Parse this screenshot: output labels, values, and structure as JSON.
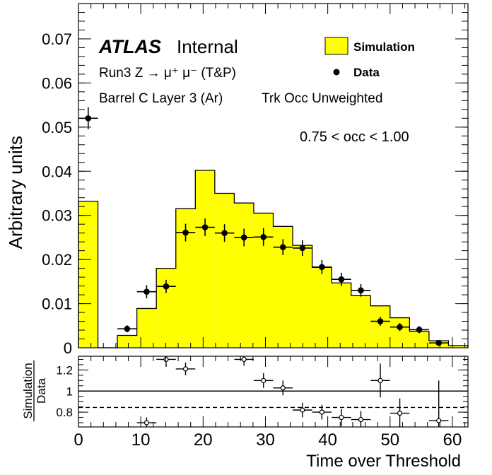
{
  "chart_data": {
    "type": "bar",
    "ylabel": "Arbitrary units",
    "xlabel": "Time over Threshold",
    "xlim": [
      0,
      62.5
    ],
    "ylim": [
      0,
      0.078
    ],
    "yticks": [
      "0",
      "0.01",
      "0.02",
      "0.03",
      "0.04",
      "0.05",
      "0.06",
      "0.07"
    ],
    "xticks": [
      "0",
      "10",
      "20",
      "30",
      "40",
      "50",
      "60"
    ],
    "annotations": {
      "atlas": "ATLAS",
      "internal": "Internal",
      "line1": "Run3 Z → μ⁺ μ⁻ (T&P)",
      "line2": "Barrel C Layer 3 (Ar)",
      "line3": "Trk Occ Unweighted",
      "occ": "0.75 < occ < 1.00"
    },
    "legend": {
      "position": "top-right",
      "simulation": "Simulation",
      "data": "Data",
      "sim_color": "#ffff00"
    },
    "bin_edges": [
      0,
      3.125,
      6.25,
      9.375,
      12.5,
      15.625,
      18.75,
      21.875,
      25,
      28.125,
      31.25,
      34.375,
      37.5,
      40.625,
      43.75,
      46.875,
      50,
      53.125,
      56.25,
      59.375,
      62.5
    ],
    "simulation": [
      0.0332,
      0,
      0.0028,
      0.0089,
      0.018,
      0.0315,
      0.0402,
      0.035,
      0.0328,
      0.0305,
      0.0275,
      0.0232,
      0.0182,
      0.0147,
      0.0118,
      0.0095,
      0.0068,
      0.0037,
      0.0016,
      0.0005
    ],
    "data": {
      "x": [
        1.5625,
        7.8125,
        10.9375,
        14.0625,
        17.1875,
        20.3125,
        23.4375,
        26.5625,
        29.6875,
        32.8125,
        35.9375,
        39.0625,
        42.1875,
        45.3125,
        48.4375,
        51.5625,
        54.6875,
        57.8125
      ],
      "y": [
        0.052,
        0.0043,
        0.0127,
        0.0139,
        0.0261,
        0.0273,
        0.026,
        0.025,
        0.0251,
        0.0228,
        0.0226,
        0.0183,
        0.0155,
        0.013,
        0.006,
        0.0047,
        0.0041,
        0.0011
      ],
      "err": [
        0.0025,
        0.0008,
        0.0015,
        0.0015,
        0.002,
        0.002,
        0.002,
        0.002,
        0.002,
        0.0018,
        0.0018,
        0.0016,
        0.0015,
        0.0014,
        0.001,
        0.0009,
        0.0008,
        0.0005
      ]
    },
    "ratio": {
      "ylabel_top": "Simulation",
      "ylabel_bottom": "Data",
      "ylim": [
        0.66,
        1.33
      ],
      "yticks": [
        "0.8",
        "1",
        "1.2"
      ],
      "dashed_level": 0.845,
      "x": [
        10.9375,
        14.0625,
        17.1875,
        26.5625,
        29.6875,
        32.8125,
        35.9375,
        39.0625,
        42.1875,
        45.3125,
        48.4375,
        51.5625,
        57.8125
      ],
      "y": [
        0.7,
        1.3,
        1.21,
        1.3,
        1.1,
        1.03,
        0.82,
        0.8,
        0.75,
        0.73,
        1.1,
        0.79,
        0.72
      ],
      "err": [
        0.05,
        0.07,
        0.06,
        0.06,
        0.07,
        0.07,
        0.07,
        0.07,
        0.08,
        0.08,
        0.16,
        0.14,
        0.38
      ]
    }
  }
}
